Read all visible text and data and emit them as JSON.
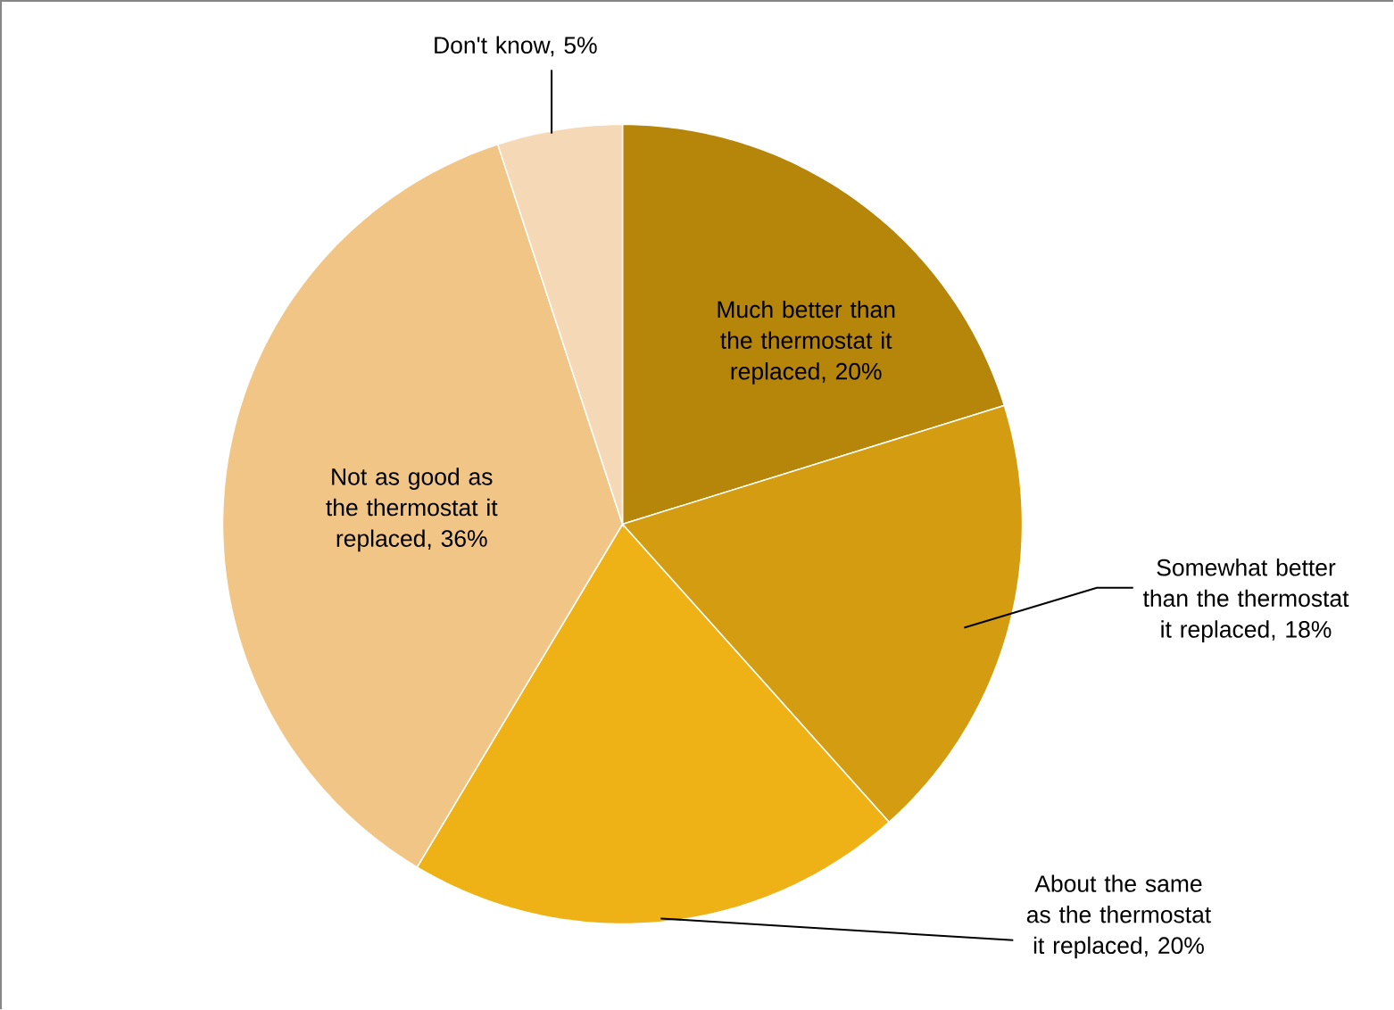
{
  "chart_data": {
    "type": "pie",
    "categories": [
      "Much better than the thermostat it replaced, 20%",
      "Somewhat better than the thermostat it replaced, 18%",
      "About the same as the thermostat it replaced, 20%",
      "Not as good as the thermostat it replaced, 36%",
      "Don't know, 5%"
    ],
    "values": [
      20,
      18,
      20,
      36,
      5
    ],
    "colors": [
      "#b5860a",
      "#d49c10",
      "#eeb116",
      "#f0c585",
      "#f5d9b6"
    ]
  }
}
